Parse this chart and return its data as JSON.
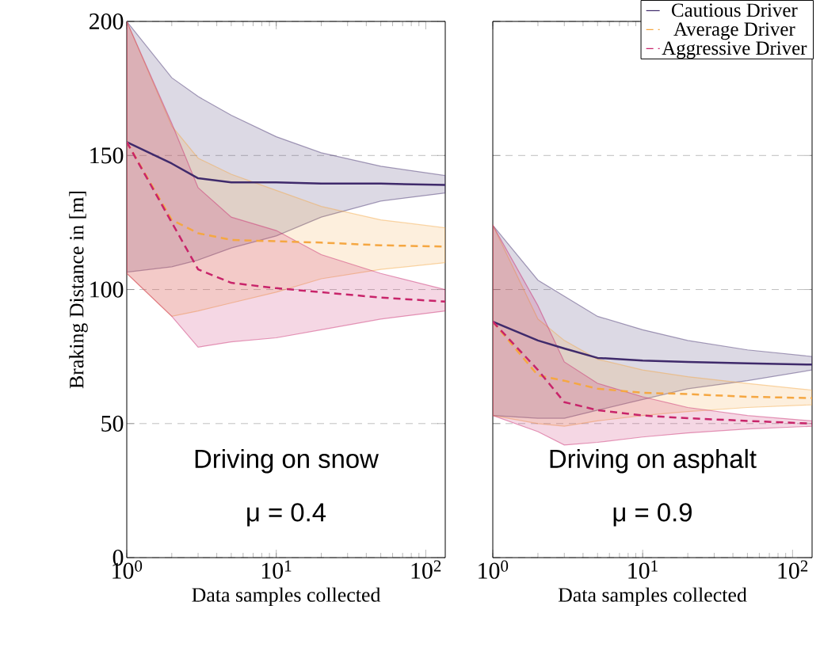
{
  "chart_data": [
    {
      "type": "line",
      "ylabel": "Braking Distance in [m]",
      "xlabel": "Data samples collected",
      "log": "x",
      "grid": "y",
      "marker": "none",
      "x": [
        1,
        2,
        3,
        5,
        10,
        20,
        50,
        135
      ],
      "xlim": [
        1,
        135
      ],
      "xticks": [
        {
          "value": 1,
          "label": "10$^{0}$"
        },
        {
          "value": 10,
          "label": "10$^{1}$"
        },
        {
          "value": 100,
          "label": "10$^{2}$"
        }
      ],
      "ylim": [
        0,
        200
      ],
      "yticks": [
        0,
        50,
        100,
        150,
        200
      ],
      "annotations": [
        "Driving on snow",
        "μ = 0.4"
      ],
      "series": [
        {
          "color": "#3f2a6b",
          "line_style": "solid",
          "values": [
            155,
            147,
            141.5,
            140,
            140,
            139.5,
            139.5,
            139
          ],
          "upper": [
            200,
            179,
            172,
            165,
            157,
            151,
            146,
            142.5
          ],
          "lower": [
            106.5,
            108.5,
            111,
            115.5,
            120,
            127,
            133,
            136
          ]
        },
        {
          "color": "#f5a742",
          "line_style": "dashed",
          "values": [
            155,
            126,
            121,
            118.5,
            118,
            117.5,
            116.5,
            116
          ],
          "upper": [
            200,
            161,
            149,
            143,
            137,
            131,
            126,
            123
          ],
          "lower": [
            106,
            90,
            92,
            95,
            99,
            104,
            107.5,
            110
          ]
        },
        {
          "color": "#c8246a",
          "line_style": "dashed",
          "values": [
            155,
            125,
            107.5,
            102.5,
            100.5,
            99,
            97,
            95.5
          ],
          "upper": [
            200,
            162,
            138,
            127,
            122,
            113,
            106,
            100
          ],
          "lower": [
            106,
            90,
            78.5,
            80.5,
            82,
            85,
            89,
            92
          ]
        }
      ]
    },
    {
      "type": "line",
      "xlabel": "Data samples collected",
      "log": "x",
      "grid": "y",
      "marker": "none",
      "legend": "top right",
      "tick_labels": "x",
      "x": [
        1,
        2,
        3,
        5,
        10,
        20,
        50,
        135
      ],
      "xlim": [
        1,
        135
      ],
      "xticks": [
        {
          "value": 1,
          "label": "10$^{0}$"
        },
        {
          "value": 10,
          "label": "10$^{1}$"
        },
        {
          "value": 100,
          "label": "10$^{2}$"
        }
      ],
      "ylim": [
        0,
        200
      ],
      "yticks": [
        0,
        50,
        100,
        150,
        200
      ],
      "annotations": [
        "Driving on asphalt",
        "μ = 0.9"
      ],
      "series": [
        {
          "name": "Cautious Driver",
          "color": "#3f2a6b",
          "line_style": "solid",
          "values": [
            88,
            81,
            78,
            74.5,
            73.5,
            73,
            72.5,
            72
          ],
          "upper": [
            124,
            103.5,
            97.5,
            90,
            85,
            81,
            77.5,
            75
          ],
          "lower": [
            53,
            52,
            52,
            55,
            59,
            63,
            66,
            70
          ]
        },
        {
          "name": "Average Driver",
          "color": "#f5a742",
          "line_style": "dashed",
          "values": [
            88,
            68,
            66,
            63,
            61.5,
            61,
            60,
            59.5
          ],
          "upper": [
            124,
            89,
            81,
            74,
            70,
            67.5,
            65,
            62.5
          ],
          "lower": [
            53,
            50,
            49,
            51,
            53,
            54.5,
            56,
            57
          ]
        },
        {
          "name": "Aggressive Driver",
          "color": "#c8246a",
          "line_style": "dashed",
          "values": [
            88,
            70,
            58,
            55,
            53,
            52,
            51,
            50
          ],
          "upper": [
            124,
            94,
            73,
            65,
            60,
            56,
            53,
            51
          ],
          "lower": [
            53,
            47,
            42,
            43,
            45,
            46.5,
            48,
            49
          ]
        }
      ]
    }
  ]
}
